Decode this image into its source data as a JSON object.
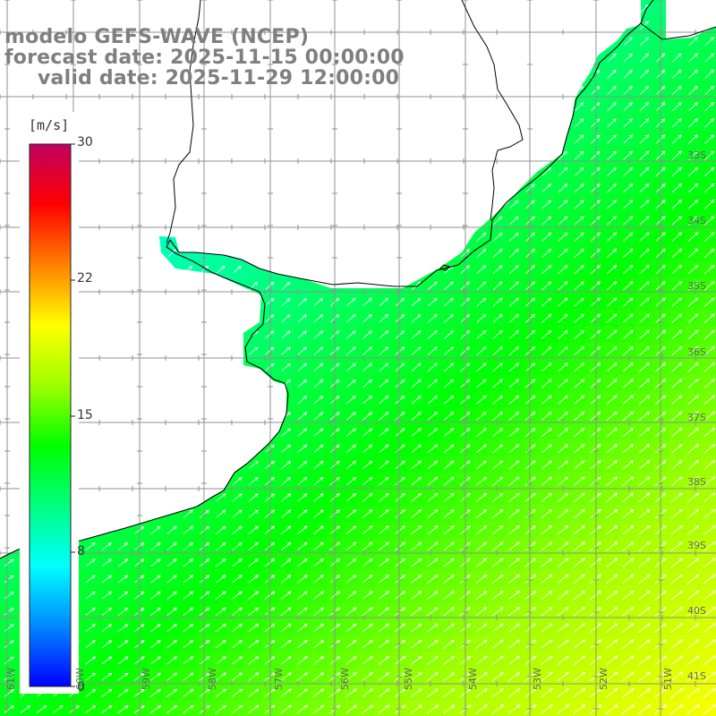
{
  "titles": {
    "model": "modelo GEFS-WAVE (NCEP)",
    "forecast": "forecast date: 2025-11-15 00:00:00",
    "valid": "valid date: 2025-11-29 12:00:00"
  },
  "colorbar": {
    "units": "[m/s]",
    "ticks": [
      {
        "label": "30",
        "value": 30
      },
      {
        "label": "22",
        "value": 22
      },
      {
        "label": "15",
        "value": 15
      },
      {
        "label": "8",
        "value": 8
      },
      {
        "label": "0",
        "value": 0
      }
    ],
    "colors": [
      "#0000ff",
      "#0088ff",
      "#00ffff",
      "#00ff80",
      "#00ff00",
      "#a0ff00",
      "#ffff00",
      "#ff8000",
      "#ff0000",
      "#c00060"
    ]
  },
  "map": {
    "lat_labels": [
      "33S",
      "34S",
      "35S",
      "36S",
      "37S",
      "38S",
      "39S",
      "40S",
      "41S"
    ],
    "lon_labels": [
      "61W",
      "60W",
      "59W",
      "58W",
      "57W",
      "56W",
      "55W",
      "54W",
      "53W",
      "52W",
      "51W"
    ],
    "land_color": "#ffffff",
    "grid_color": "#909090",
    "coast_color": "#000000",
    "arrow_color": "#ffffff"
  }
}
